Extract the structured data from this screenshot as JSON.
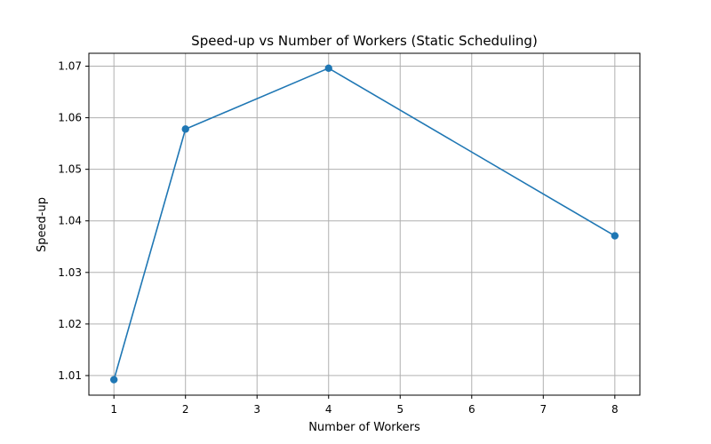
{
  "chart_data": {
    "type": "line",
    "title": "Speed-up vs Number of Workers (Static Scheduling)",
    "xlabel": "Number of Workers",
    "ylabel": "Speed-up",
    "x": [
      1,
      2,
      4,
      8
    ],
    "series": [
      {
        "values": [
          1.0092,
          1.0578,
          1.0696,
          1.0371
        ],
        "color": "#1f77b4",
        "marker": "circle"
      }
    ],
    "xlim": [
      0.65,
      8.35
    ],
    "ylim": [
      1.0062,
      1.0725
    ],
    "xticks": [
      1,
      2,
      3,
      4,
      5,
      6,
      7,
      8
    ],
    "yticks": [
      1.01,
      1.02,
      1.03,
      1.04,
      1.05,
      1.06,
      1.07
    ],
    "grid": true,
    "legend": "none"
  }
}
